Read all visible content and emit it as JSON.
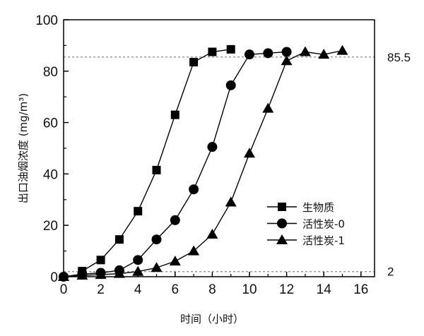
{
  "chart_data": {
    "type": "line",
    "xlabel": "时间（小时）",
    "ylabel": "出口油烟浓度 (mg/m³)",
    "xlim": [
      0,
      16
    ],
    "ylim": [
      0,
      100
    ],
    "xticks": [
      "0",
      "2",
      "4",
      "6",
      "8",
      "10",
      "12",
      "14",
      "16"
    ],
    "yticks": [
      "0",
      "20",
      "40",
      "60",
      "80",
      "100"
    ],
    "grid": false,
    "legend": "center-right",
    "reference_lines": [
      {
        "y": 85.5,
        "label": "85.5",
        "style": "dashed",
        "color": "#888888"
      },
      {
        "y": 2,
        "label": "2",
        "style": "dashed",
        "color": "#888888"
      }
    ],
    "series": [
      {
        "name": "生物质",
        "marker": "square",
        "x": [
          1,
          2,
          3,
          4,
          5,
          6,
          7,
          8,
          9
        ],
        "y": [
          2.2,
          6.5,
          14.5,
          25.5,
          41.5,
          63,
          83.5,
          87.5,
          88.5
        ]
      },
      {
        "name": "活性炭-0",
        "marker": "circle",
        "x": [
          0,
          1,
          2,
          3,
          4,
          5,
          6,
          7,
          8,
          9,
          10,
          11,
          12
        ],
        "y": [
          0,
          1,
          1.5,
          2.5,
          6.5,
          14.5,
          22,
          34,
          50.5,
          74.5,
          86.5,
          87,
          87.5
        ]
      },
      {
        "name": "活性炭-1",
        "marker": "triangle",
        "x": [
          0,
          1,
          2,
          3,
          4,
          5,
          6,
          7,
          8,
          9,
          10,
          11,
          12,
          13,
          14,
          15
        ],
        "y": [
          0,
          0.5,
          0.8,
          1.2,
          2,
          3.5,
          6,
          10,
          16.5,
          29,
          48,
          65.5,
          84,
          87.5,
          86.5,
          88
        ]
      }
    ]
  }
}
